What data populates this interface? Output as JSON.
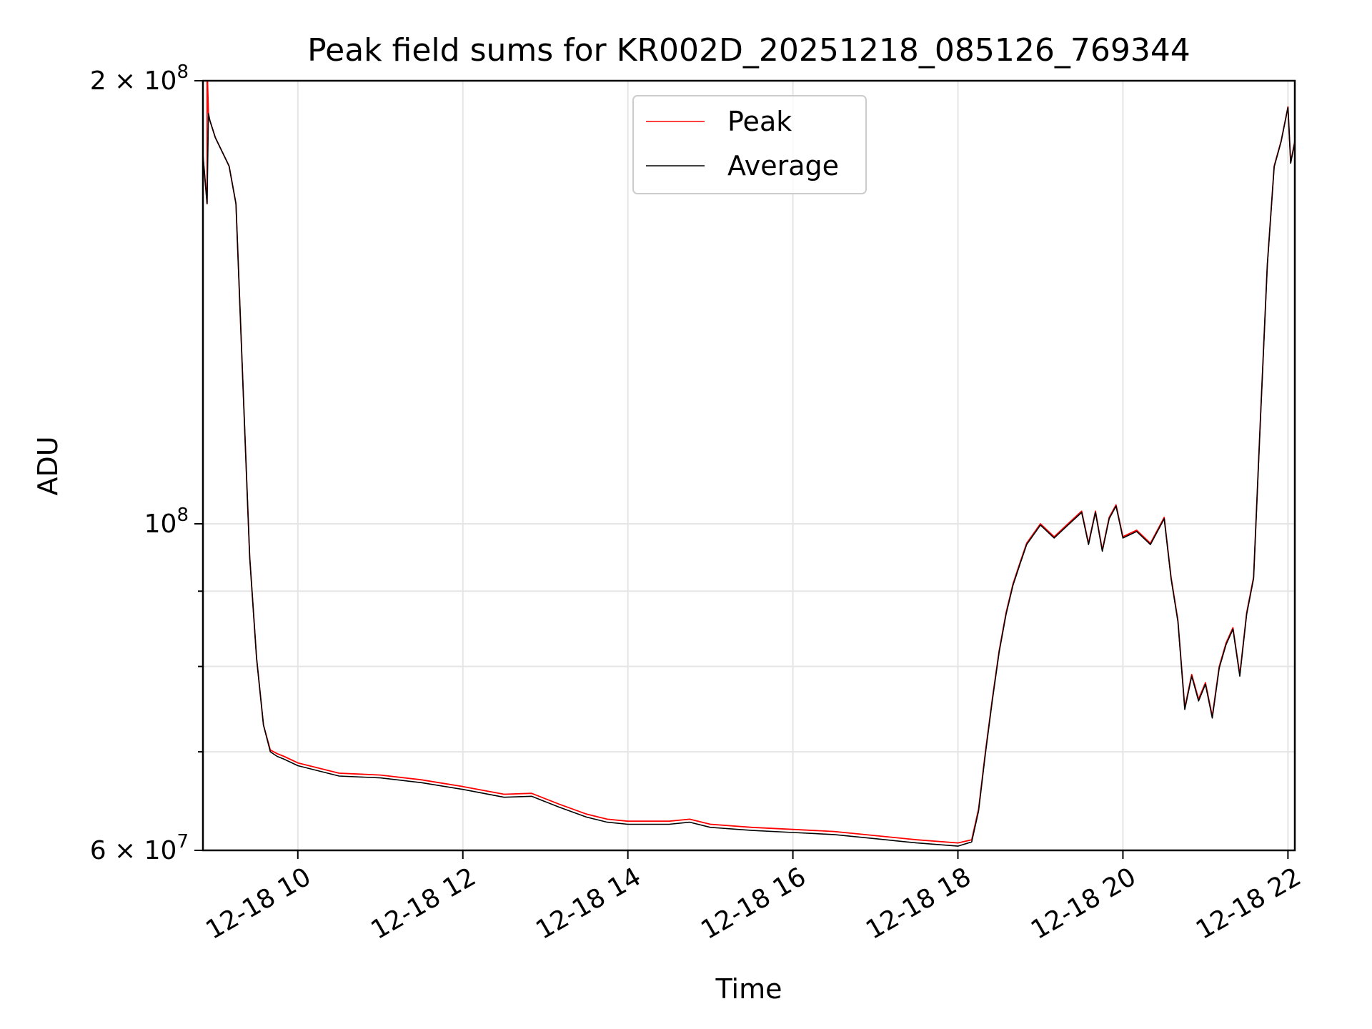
{
  "chart_data": {
    "type": "line",
    "title": "Peak field sums for KR002D_20251218_085126_769344",
    "xlabel": "Time",
    "ylabel": "ADU",
    "y_scale": "log",
    "ylim": [
      60000000,
      200000000
    ],
    "xlim": [
      "2025-12-18 08:51",
      "2025-12-18 22:05"
    ],
    "grid": true,
    "legend_position": "top-center",
    "x_ticks": [
      {
        "value": "2025-12-18 10:00",
        "label": "12-18 10"
      },
      {
        "value": "2025-12-18 12:00",
        "label": "12-18 12"
      },
      {
        "value": "2025-12-18 14:00",
        "label": "12-18 14"
      },
      {
        "value": "2025-12-18 16:00",
        "label": "12-18 16"
      },
      {
        "value": "2025-12-18 18:00",
        "label": "12-18 18"
      },
      {
        "value": "2025-12-18 20:00",
        "label": "12-18 20"
      },
      {
        "value": "2025-12-18 22:00",
        "label": "12-18 22"
      }
    ],
    "y_ticks": [
      {
        "value": 60000000,
        "base": "6 × 10",
        "exp": "7"
      },
      {
        "value": 100000000,
        "base": "10",
        "exp": "8"
      },
      {
        "value": 200000000,
        "base": "2 × 10",
        "exp": "8"
      }
    ],
    "y_minor_ticks": [
      70000000,
      80000000,
      90000000
    ],
    "series": [
      {
        "name": "Peak",
        "color": "#ff0000",
        "x": [
          "2025-12-18 08:51",
          "2025-12-18 08:54",
          "2025-12-18 08:54",
          "2025-12-18 08:55",
          "2025-12-18 08:56",
          "2025-12-18 09:00",
          "2025-12-18 09:10",
          "2025-12-18 09:15",
          "2025-12-18 09:20",
          "2025-12-18 09:25",
          "2025-12-18 09:30",
          "2025-12-18 09:35",
          "2025-12-18 09:40",
          "2025-12-18 09:45",
          "2025-12-18 09:50",
          "2025-12-18 10:00",
          "2025-12-18 10:30",
          "2025-12-18 11:00",
          "2025-12-18 11:30",
          "2025-12-18 12:00",
          "2025-12-18 12:30",
          "2025-12-18 12:50",
          "2025-12-18 13:10",
          "2025-12-18 13:30",
          "2025-12-18 13:45",
          "2025-12-18 14:00",
          "2025-12-18 14:30",
          "2025-12-18 14:45",
          "2025-12-18 15:00",
          "2025-12-18 15:30",
          "2025-12-18 16:00",
          "2025-12-18 16:30",
          "2025-12-18 17:00",
          "2025-12-18 17:30",
          "2025-12-18 18:00",
          "2025-12-18 18:10",
          "2025-12-18 18:15",
          "2025-12-18 18:20",
          "2025-12-18 18:25",
          "2025-12-18 18:30",
          "2025-12-18 18:35",
          "2025-12-18 18:40",
          "2025-12-18 18:45",
          "2025-12-18 18:50",
          "2025-12-18 19:00",
          "2025-12-18 19:10",
          "2025-12-18 19:20",
          "2025-12-18 19:30",
          "2025-12-18 19:35",
          "2025-12-18 19:40",
          "2025-12-18 19:45",
          "2025-12-18 19:50",
          "2025-12-18 19:55",
          "2025-12-18 20:00",
          "2025-12-18 20:10",
          "2025-12-18 20:20",
          "2025-12-18 20:30",
          "2025-12-18 20:35",
          "2025-12-18 20:40",
          "2025-12-18 20:45",
          "2025-12-18 20:50",
          "2025-12-18 20:55",
          "2025-12-18 21:00",
          "2025-12-18 21:05",
          "2025-12-18 21:10",
          "2025-12-18 21:15",
          "2025-12-18 21:20",
          "2025-12-18 21:25",
          "2025-12-18 21:30",
          "2025-12-18 21:35",
          "2025-12-18 21:40",
          "2025-12-18 21:45",
          "2025-12-18 21:50",
          "2025-12-18 21:55",
          "2025-12-18 22:00",
          "2025-12-18 22:02",
          "2025-12-18 22:04",
          "2025-12-18 22:05"
        ],
        "values": [
          178000000,
          165000000,
          205000000,
          190000000,
          188000000,
          183000000,
          175000000,
          165000000,
          125000000,
          95000000,
          81000000,
          73000000,
          70200000,
          69800000,
          69500000,
          68800000,
          67700000,
          67500000,
          67000000,
          66300000,
          65500000,
          65600000,
          64500000,
          63500000,
          63000000,
          62800000,
          62800000,
          63000000,
          62500000,
          62200000,
          62000000,
          61800000,
          61400000,
          61000000,
          60700000,
          61000000,
          64000000,
          70000000,
          76000000,
          82000000,
          87000000,
          91000000,
          94000000,
          97000000,
          100000000,
          98000000,
          100000000,
          102000000,
          97000000,
          102000000,
          96000000,
          101000000,
          103000000,
          98000000,
          99000000,
          97000000,
          101000000,
          92000000,
          86000000,
          75000000,
          79000000,
          76000000,
          78000000,
          74000000,
          80000000,
          83000000,
          85000000,
          79000000,
          87000000,
          92000000,
          118000000,
          150000000,
          175000000,
          182000000,
          192000000,
          176000000,
          180000000,
          182000000
        ]
      },
      {
        "name": "Average",
        "color": "#000000",
        "x": [
          "2025-12-18 08:51",
          "2025-12-18 08:54",
          "2025-12-18 08:55",
          "2025-12-18 08:56",
          "2025-12-18 09:00",
          "2025-12-18 09:10",
          "2025-12-18 09:15",
          "2025-12-18 09:20",
          "2025-12-18 09:25",
          "2025-12-18 09:30",
          "2025-12-18 09:35",
          "2025-12-18 09:40",
          "2025-12-18 09:45",
          "2025-12-18 09:50",
          "2025-12-18 10:00",
          "2025-12-18 10:30",
          "2025-12-18 11:00",
          "2025-12-18 11:30",
          "2025-12-18 12:00",
          "2025-12-18 12:30",
          "2025-12-18 12:50",
          "2025-12-18 13:10",
          "2025-12-18 13:30",
          "2025-12-18 13:45",
          "2025-12-18 14:00",
          "2025-12-18 14:30",
          "2025-12-18 14:45",
          "2025-12-18 15:00",
          "2025-12-18 15:30",
          "2025-12-18 16:00",
          "2025-12-18 16:30",
          "2025-12-18 17:00",
          "2025-12-18 17:30",
          "2025-12-18 18:00",
          "2025-12-18 18:10",
          "2025-12-18 18:15",
          "2025-12-18 18:20",
          "2025-12-18 18:25",
          "2025-12-18 18:30",
          "2025-12-18 18:35",
          "2025-12-18 18:40",
          "2025-12-18 18:45",
          "2025-12-18 18:50",
          "2025-12-18 19:00",
          "2025-12-18 19:10",
          "2025-12-18 19:20",
          "2025-12-18 19:30",
          "2025-12-18 19:35",
          "2025-12-18 19:40",
          "2025-12-18 19:45",
          "2025-12-18 19:50",
          "2025-12-18 19:55",
          "2025-12-18 20:00",
          "2025-12-18 20:10",
          "2025-12-18 20:20",
          "2025-12-18 20:30",
          "2025-12-18 20:35",
          "2025-12-18 20:40",
          "2025-12-18 20:45",
          "2025-12-18 20:50",
          "2025-12-18 20:55",
          "2025-12-18 21:00",
          "2025-12-18 21:05",
          "2025-12-18 21:10",
          "2025-12-18 21:15",
          "2025-12-18 21:20",
          "2025-12-18 21:25",
          "2025-12-18 21:30",
          "2025-12-18 21:35",
          "2025-12-18 21:40",
          "2025-12-18 21:45",
          "2025-12-18 21:50",
          "2025-12-18 21:55",
          "2025-12-18 22:00",
          "2025-12-18 22:02",
          "2025-12-18 22:04",
          "2025-12-18 22:05"
        ],
        "values": [
          178000000,
          165000000,
          190000000,
          188000000,
          183000000,
          175000000,
          165000000,
          125000000,
          95000000,
          81000000,
          73000000,
          70000000,
          69500000,
          69200000,
          68500000,
          67400000,
          67200000,
          66700000,
          66000000,
          65200000,
          65300000,
          64200000,
          63200000,
          62700000,
          62500000,
          62500000,
          62700000,
          62200000,
          61900000,
          61700000,
          61500000,
          61100000,
          60700000,
          60400000,
          60800000,
          63800000,
          69800000,
          75800000,
          81800000,
          86800000,
          90800000,
          93800000,
          96800000,
          99800000,
          97800000,
          99800000,
          101800000,
          96800000,
          101800000,
          95800000,
          100800000,
          102800000,
          97800000,
          98800000,
          96800000,
          100800000,
          91800000,
          85800000,
          74800000,
          78800000,
          75800000,
          77800000,
          73800000,
          79800000,
          82800000,
          84800000,
          78800000,
          86800000,
          91800000,
          117800000,
          149800000,
          174800000,
          181800000,
          191800000,
          175800000,
          179800000,
          181800000
        ]
      }
    ]
  }
}
